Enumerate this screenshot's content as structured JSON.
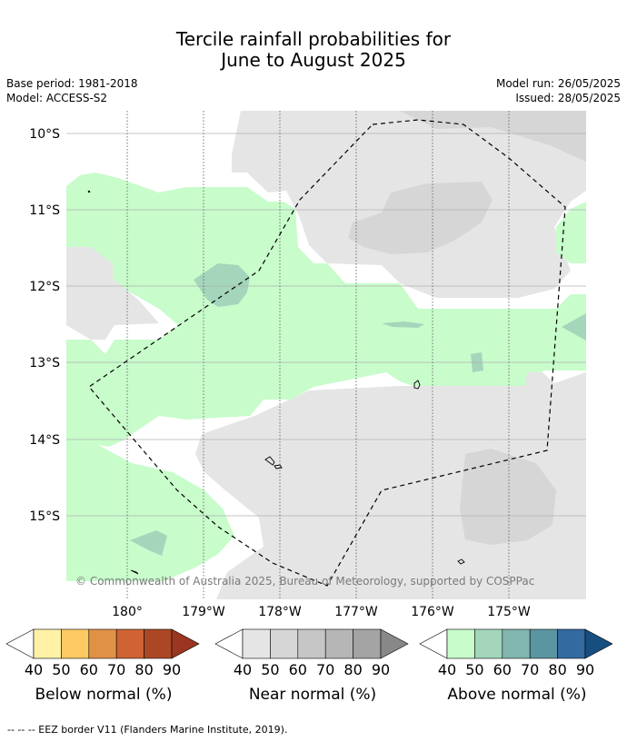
{
  "header": {
    "title_line1": "Tercile rainfall probabilities for",
    "title_line2": "June to August 2025",
    "base_period": "Base period: 1981-2018",
    "model": "Model: ACCESS-S2",
    "model_run": "Model run: 26/05/2025",
    "issued": "Issued: 28/05/2025"
  },
  "map": {
    "lat_labels": [
      "10°S",
      "11°S",
      "12°S",
      "13°S",
      "14°S",
      "15°S"
    ],
    "lon_labels": [
      "180°",
      "179°W",
      "178°W",
      "177°W",
      "176°W",
      "175°W"
    ],
    "copyright": "© Commonwealth of Australia 2025, Bureau of Meteorology, supported by COSPPac",
    "colors": {
      "near_40": "#e5e5e5",
      "near_50": "#d6d6d6",
      "above_40": "#c8fccb",
      "above_50": "#a3d6bb",
      "coast": "#000000"
    }
  },
  "legends": [
    {
      "label": "Below normal (%)",
      "ticks": [
        "40",
        "50",
        "60",
        "70",
        "80",
        "90"
      ],
      "colors": [
        "#fff1a6",
        "#fdc962",
        "#e09146",
        "#cf6333",
        "#ac4726",
        "#9b3620"
      ]
    },
    {
      "label": "Near normal (%)",
      "ticks": [
        "40",
        "50",
        "60",
        "70",
        "80",
        "90"
      ],
      "colors": [
        "#e5e5e5",
        "#d6d6d6",
        "#c6c6c6",
        "#b6b6b6",
        "#a4a4a4",
        "#888888"
      ]
    },
    {
      "label": "Above normal (%)",
      "ticks": [
        "40",
        "50",
        "60",
        "70",
        "80",
        "90"
      ],
      "colors": [
        "#c8fccb",
        "#a3d6bb",
        "#80b6af",
        "#5b95a1",
        "#336aa0",
        "#174e80"
      ]
    }
  ],
  "footer": {
    "eez_note": "--  --  -- EEZ border V11 (Flanders Marine Institute, 2019)."
  }
}
